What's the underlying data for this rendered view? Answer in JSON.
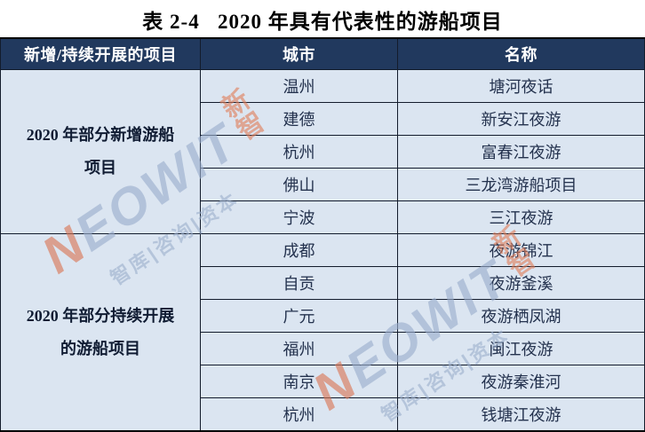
{
  "title": "表 2-4   2020 年具有代表性的游船项目",
  "table": {
    "headers": [
      "新增/持续开展的项目",
      "城市",
      "名称"
    ],
    "groups": [
      {
        "label": "2020 年部分新增游船项目",
        "rows": [
          {
            "city": "温州",
            "name": "塘河夜话"
          },
          {
            "city": "建德",
            "name": "新安江夜游"
          },
          {
            "city": "杭州",
            "name": "富春江夜游"
          },
          {
            "city": "佛山",
            "name": "三龙湾游船项目"
          },
          {
            "city": "宁波",
            "name": "三江夜游"
          }
        ]
      },
      {
        "label": "2020 年部分持续开展的游船项目",
        "rows": [
          {
            "city": "成都",
            "name": "夜游锦江"
          },
          {
            "city": "自贡",
            "name": "夜游釜溪"
          },
          {
            "city": "广元",
            "name": "夜游栖凤湖"
          },
          {
            "city": "福州",
            "name": "闽江夜游"
          },
          {
            "city": "南京",
            "name": "夜游秦淮河"
          },
          {
            "city": "杭州",
            "name": "钱塘江夜游"
          }
        ]
      }
    ]
  },
  "watermark": {
    "brand": "NEOWIT",
    "brand_suffix": "新智",
    "subtitle": "智库|咨询|资本",
    "accent_color": "#da7552",
    "text_color": "#9aadcb"
  },
  "colors": {
    "header_bg": "#21395e",
    "header_text": "#ffffff",
    "row_bg": "#dbe5f1",
    "cell_text": "#24324e",
    "border": "#131c2c"
  }
}
